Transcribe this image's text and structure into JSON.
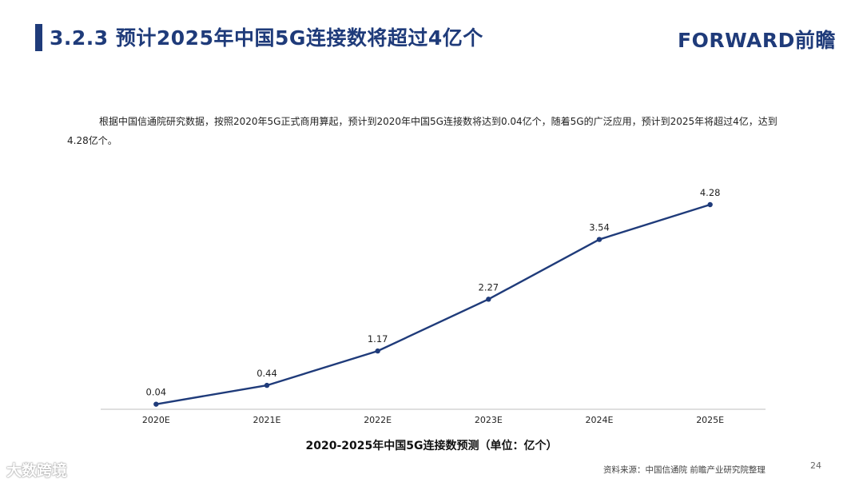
{
  "header": {
    "title": "3.2.3 预计2025年中国5G连接数将超过4亿个",
    "logo": "FORWARD前瞻"
  },
  "description": "根据中国信通院研究数据，按照2020年5G正式商用算起，预计到2020年中国5G连接数将达到0.04亿个，随着5G的广泛应用，预计到2025年将超过4亿，达到4.28亿个。",
  "chart_data": {
    "type": "line",
    "title": "2020-2025年中国5G连接数预测（单位：亿个）",
    "categories": [
      "2020E",
      "2021E",
      "2022E",
      "2023E",
      "2024E",
      "2025E"
    ],
    "values": [
      0.04,
      0.44,
      1.17,
      2.27,
      3.54,
      4.28
    ],
    "data_labels": [
      "0.04",
      "0.44",
      "1.17",
      "2.27",
      "3.54",
      "4.28"
    ],
    "ylim": [
      0,
      4.6
    ],
    "grid": false,
    "line_color": "#1f3b7a"
  },
  "footer": {
    "source": "资料来源：中国信通院 前瞻产业研究院整理",
    "page": "24",
    "badge": "大数跨境"
  }
}
